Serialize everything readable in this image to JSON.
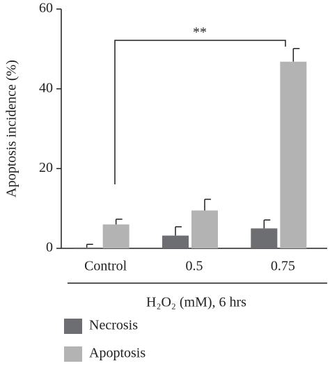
{
  "chart_data": {
    "type": "bar",
    "y_label": "Apoptosis incidence (%)",
    "x_label": "H₂O₂ (mM), 6 hrs",
    "categories": [
      "Control",
      "0.5",
      "0.75"
    ],
    "series": [
      {
        "name": "Necrosis",
        "color": "#6d6e71",
        "values": [
          0.2,
          3.2,
          5.0
        ],
        "errors": [
          0.8,
          2.2,
          2.1
        ]
      },
      {
        "name": "Apoptosis",
        "color": "#b3b3b3",
        "values": [
          6.0,
          9.5,
          46.8
        ],
        "errors": [
          1.3,
          2.8,
          3.3
        ]
      }
    ],
    "annotation": "**",
    "ylim": [
      0,
      60
    ],
    "yticks": [
      0,
      20,
      40,
      60
    ],
    "grid": false
  }
}
